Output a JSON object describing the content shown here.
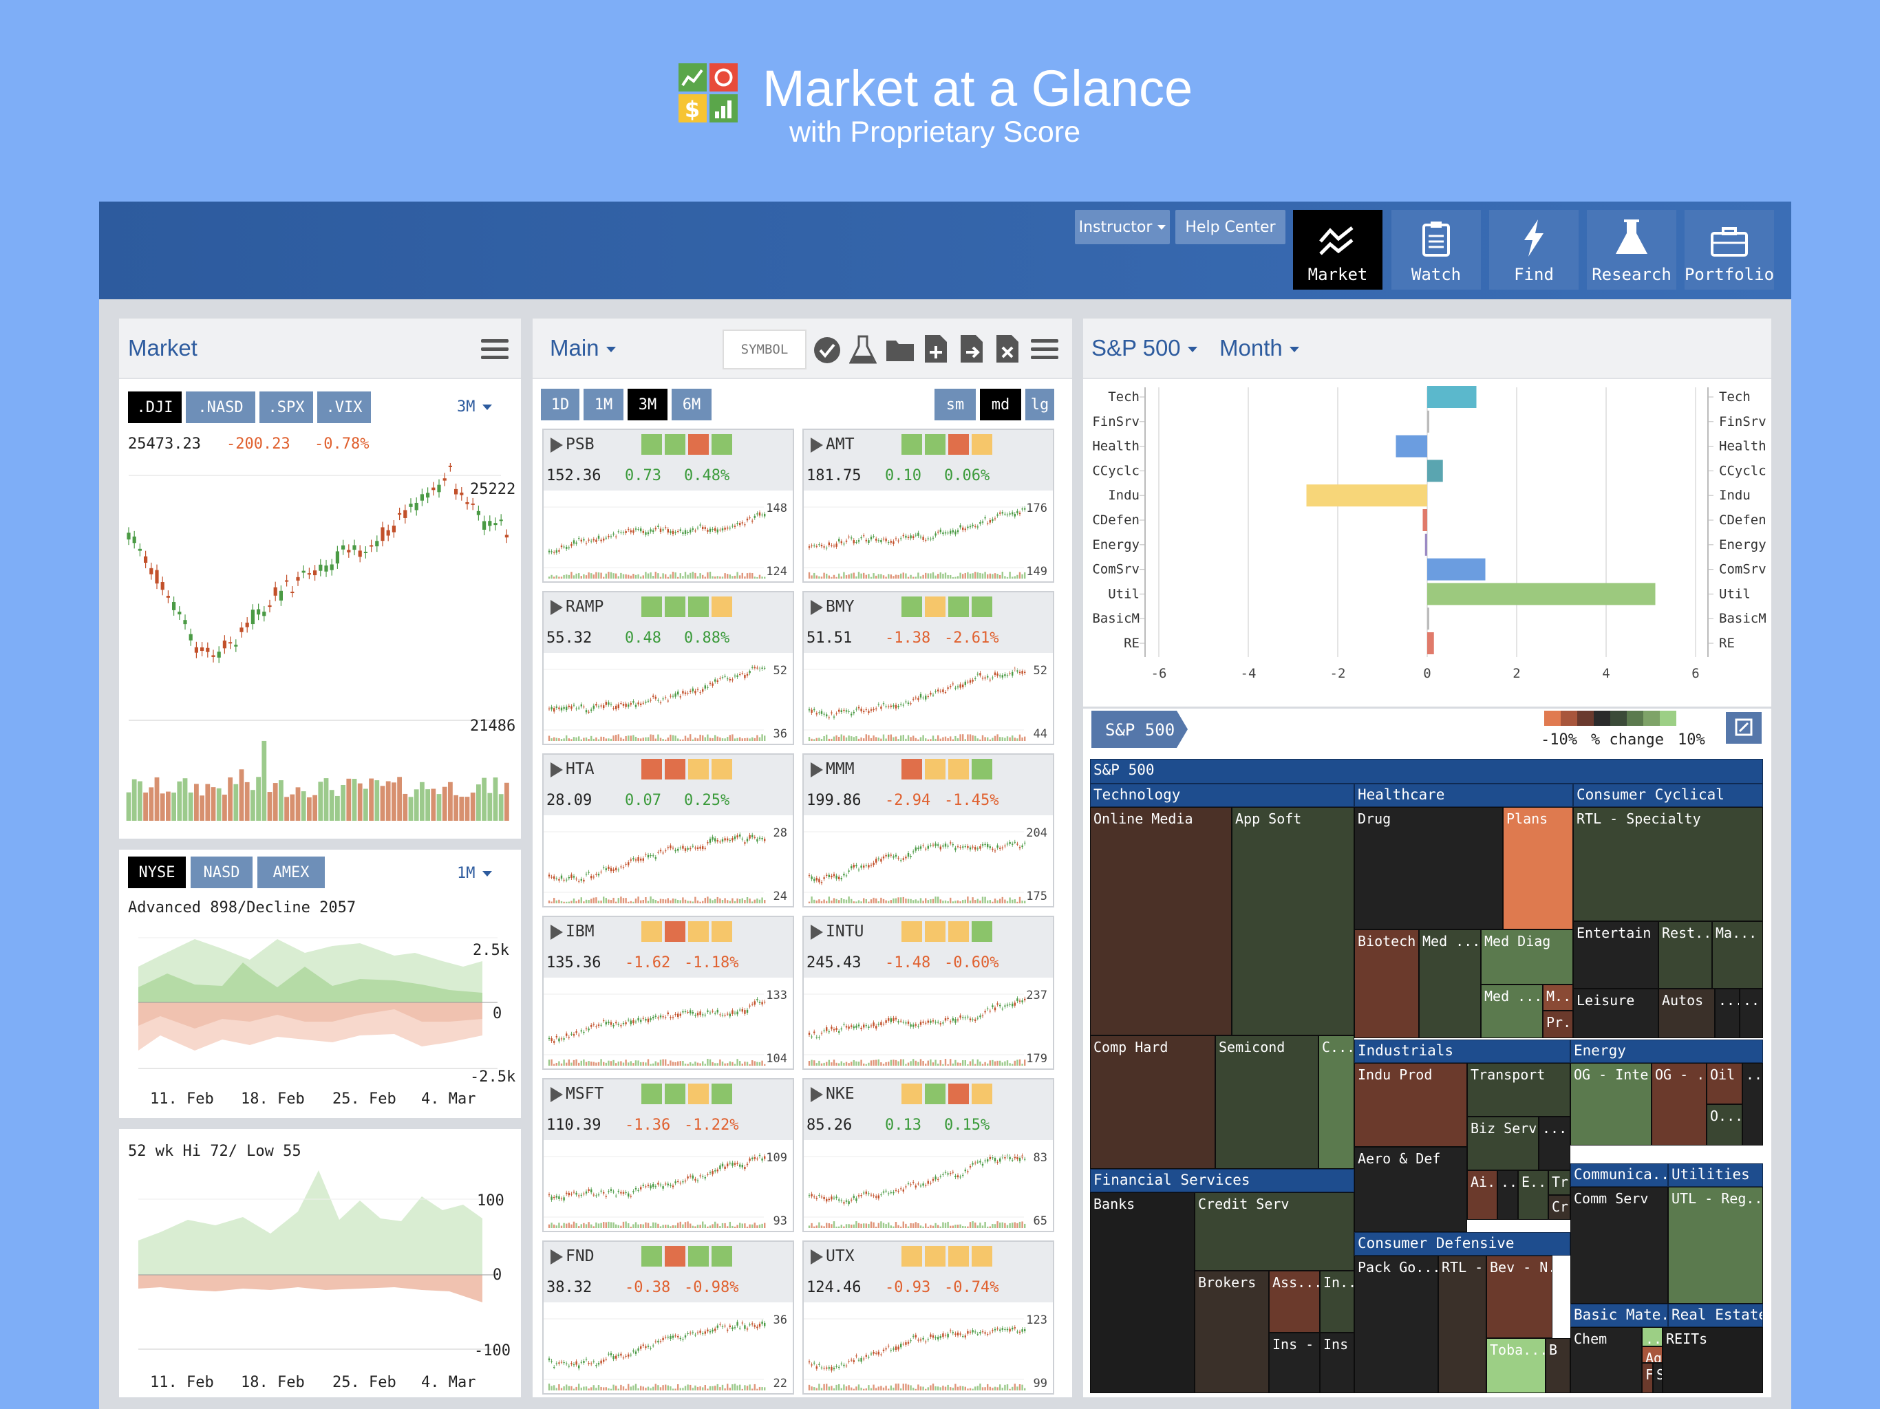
{
  "banner": {
    "title": "Market at a Glance",
    "subtitle": "with Proprietary Score",
    "logo_icon": "score-grid-icon"
  },
  "header": {
    "instructor_label": "Instructor",
    "help_label": "Help Center",
    "nav": [
      {
        "label": "Market",
        "icon": "market-chart-icon",
        "active": true
      },
      {
        "label": "Watch",
        "icon": "clipboard-icon",
        "active": false
      },
      {
        "label": "Find",
        "icon": "lightning-icon",
        "active": false
      },
      {
        "label": "Research",
        "icon": "flask-icon",
        "active": false
      },
      {
        "label": "Portfolio",
        "icon": "briefcase-icon",
        "active": false
      }
    ]
  },
  "market": {
    "title": "Market",
    "index_tabs": [
      ".DJI",
      ".NASD",
      ".SPX",
      ".VIX"
    ],
    "range": "3M",
    "last": "25473.23",
    "change": "-200.23",
    "pct": "-0.78%",
    "hi_label": "25222",
    "lo_label": "21486",
    "breadth": {
      "tabs": [
        "NYSE",
        "NASD",
        "AMEX"
      ],
      "range": "1M",
      "label": "Advanced 898/Decline 2057",
      "ticks": [
        "2.5k",
        "0",
        "-2.5k"
      ],
      "dates": [
        "11. Feb",
        "18. Feb",
        "25. Feb",
        "4. Mar"
      ]
    },
    "hilo": {
      "label": "52 wk Hi 72/ Low 55",
      "ticks": [
        "100",
        "0",
        "-100"
      ],
      "dates": [
        "11. Feb",
        "18. Feb",
        "25. Feb",
        "4. Mar"
      ]
    }
  },
  "watch": {
    "list": "Main",
    "symbol_placeholder": "SYMBOL",
    "ranges": [
      "1D",
      "1M",
      "3M",
      "6M"
    ],
    "sizes": [
      "sm",
      "md",
      "lg"
    ],
    "colors": {
      "up": "#3a9a3a",
      "down": "#e0602e"
    },
    "cards": [
      {
        "sym": "PSB",
        "price": "152.36",
        "chg": "0.73",
        "pct": "0.48%",
        "hi": "148",
        "lo": "124",
        "up": true,
        "scores": [
          "g",
          "g",
          "r",
          "g"
        ]
      },
      {
        "sym": "AMT",
        "price": "181.75",
        "chg": "0.10",
        "pct": "0.06%",
        "hi": "176",
        "lo": "149",
        "up": true,
        "scores": [
          "g",
          "g",
          "r",
          "o"
        ]
      },
      {
        "sym": "RAMP",
        "price": "55.32",
        "chg": "0.48",
        "pct": "0.88%",
        "hi": "52",
        "lo": "36",
        "up": true,
        "scores": [
          "g",
          "g",
          "g",
          "o"
        ]
      },
      {
        "sym": "BMY",
        "price": "51.51",
        "chg": "-1.38",
        "pct": "-2.61%",
        "hi": "52",
        "lo": "44",
        "up": false,
        "scores": [
          "g",
          "o",
          "g",
          "g"
        ]
      },
      {
        "sym": "HTA",
        "price": "28.09",
        "chg": "0.07",
        "pct": "0.25%",
        "hi": "28",
        "lo": "24",
        "up": true,
        "scores": [
          "r",
          "r",
          "o",
          "o"
        ]
      },
      {
        "sym": "MMM",
        "price": "199.86",
        "chg": "-2.94",
        "pct": "-1.45%",
        "hi": "204",
        "lo": "175",
        "up": false,
        "scores": [
          "r",
          "o",
          "o",
          "g"
        ]
      },
      {
        "sym": "IBM",
        "price": "135.36",
        "chg": "-1.62",
        "pct": "-1.18%",
        "hi": "133",
        "lo": "104",
        "up": false,
        "scores": [
          "o",
          "r",
          "o",
          "o"
        ]
      },
      {
        "sym": "INTU",
        "price": "245.43",
        "chg": "-1.48",
        "pct": "-0.60%",
        "hi": "237",
        "lo": "179",
        "up": false,
        "scores": [
          "o",
          "o",
          "o",
          "g"
        ]
      },
      {
        "sym": "MSFT",
        "price": "110.39",
        "chg": "-1.36",
        "pct": "-1.22%",
        "hi": "109",
        "lo": "93",
        "up": false,
        "scores": [
          "g",
          "g",
          "o",
          "g"
        ]
      },
      {
        "sym": "NKE",
        "price": "85.26",
        "chg": "0.13",
        "pct": "0.15%",
        "hi": "83",
        "lo": "65",
        "up": true,
        "scores": [
          "o",
          "g",
          "r",
          "o"
        ]
      },
      {
        "sym": "FND",
        "price": "38.32",
        "chg": "-0.38",
        "pct": "-0.98%",
        "hi": "36",
        "lo": "22",
        "up": false,
        "scores": [
          "g",
          "r",
          "g",
          "g"
        ]
      },
      {
        "sym": "UTX",
        "price": "124.46",
        "chg": "-0.93",
        "pct": "-0.74%",
        "hi": "123",
        "lo": "99",
        "up": false,
        "scores": [
          "o",
          "o",
          "o",
          "o"
        ]
      }
    ]
  },
  "sectors": {
    "index": "S&P 500",
    "period": "Month",
    "breadcrumb": "S&P 500",
    "legend": {
      "low": "-10%",
      "mid": "% change",
      "high": "10%"
    },
    "chart_data": {
      "type": "bar",
      "orientation": "horizontal",
      "categories": [
        "Tech",
        "FinSrv",
        "Health",
        "CCyclc",
        "Indu",
        "CDefen",
        "Energy",
        "ComSrv",
        "Util",
        "BasicM",
        "RE"
      ],
      "values": [
        1.1,
        0.0,
        -0.7,
        0.35,
        -2.7,
        -0.1,
        -0.05,
        1.3,
        5.1,
        0.0,
        0.15
      ],
      "colors": [
        "#5bb8cc",
        "#bbbbbb",
        "#6b9de0",
        "#5aa5b0",
        "#f7d679",
        "#e07a6a",
        "#9b8ac4",
        "#6b9de0",
        "#9cc97e",
        "#bbbbbb",
        "#e07a6a"
      ],
      "xlim": [
        -6,
        6
      ],
      "xticks": [
        "-6",
        "-4",
        "-2",
        "0",
        "2",
        "4",
        "6"
      ],
      "grid": true
    },
    "treemap": {
      "root": "S&P 500",
      "headers": [
        "Technology",
        "Healthcare",
        "Consumer Cyclical",
        "Industrials",
        "Energy",
        "Financial Services",
        "Communica...",
        "Utilities",
        "Consumer Defensive",
        "Basic Mate...",
        "Real Estate"
      ],
      "cells": [
        "Online Media",
        "App Soft",
        "Comp Hard",
        "Semicond",
        "C...",
        "Drug",
        "Plans",
        "Biotech",
        "Med ...",
        "Med Diag",
        "Med ...",
        "M...",
        "Pr...",
        "RTL - Specialty",
        "Entertain",
        "Rest...",
        "Ma...",
        "Leisure",
        "Autos",
        "...",
        "...",
        "Indu Prod",
        "Transport",
        "Biz Serv",
        "...",
        "Aero & Def",
        "Ai...",
        "...",
        "E...",
        "Tr",
        "Cr",
        "OG - Inte...",
        "OG - ...",
        "Oil &...",
        "O...",
        "...",
        "Banks",
        "Credit Serv",
        "Brokers",
        "Ass...",
        "In...",
        "Ins - ...",
        "Ins",
        "Comm Serv",
        "UTL - Reg...",
        "Pack Go...",
        "RTL - ...",
        "Bev - N...",
        "Toba...",
        "B",
        "Chem",
        "...",
        "Ag",
        "F",
        "S",
        "REITs"
      ]
    }
  }
}
